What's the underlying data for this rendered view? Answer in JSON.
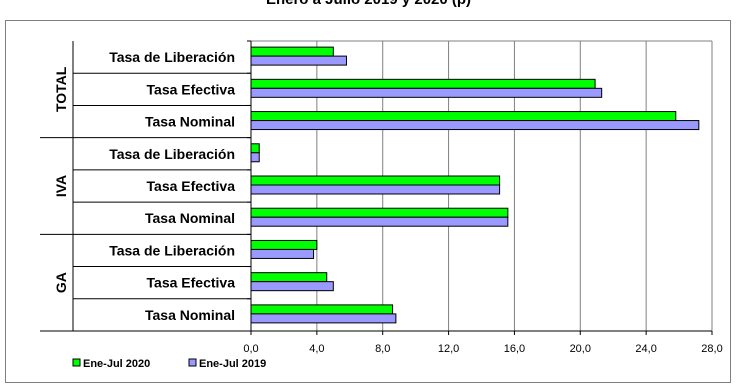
{
  "chart_data": {
    "type": "bar",
    "orientation": "horizontal",
    "title": "Enero a Julio 2019 y 2020 (p)",
    "groups": [
      "TOTAL",
      "IVA",
      "GA"
    ],
    "categories": [
      {
        "group": "TOTAL",
        "label": "Tasa de Liberación"
      },
      {
        "group": "TOTAL",
        "label": "Tasa Efectiva"
      },
      {
        "group": "TOTAL",
        "label": "Tasa Nominal"
      },
      {
        "group": "IVA",
        "label": "Tasa de Liberación"
      },
      {
        "group": "IVA",
        "label": "Tasa Efectiva"
      },
      {
        "group": "IVA",
        "label": "Tasa Nominal"
      },
      {
        "group": "GA",
        "label": "Tasa de Liberación"
      },
      {
        "group": "GA",
        "label": "Tasa Efectiva"
      },
      {
        "group": "GA",
        "label": "Tasa Nominal"
      }
    ],
    "series": [
      {
        "name": "Ene-Jul 2020",
        "color": "#00ff00",
        "values": [
          5.0,
          20.9,
          25.8,
          0.5,
          15.1,
          15.6,
          4.0,
          4.6,
          8.6
        ]
      },
      {
        "name": "Ene-Jul 2019",
        "color": "#9999ff",
        "values": [
          5.8,
          21.3,
          27.2,
          0.5,
          15.1,
          15.6,
          3.8,
          5.0,
          8.8
        ]
      }
    ],
    "xlim": [
      0,
      28
    ],
    "xticks": [
      "0,0",
      "4,0",
      "8,0",
      "12,0",
      "16,0",
      "20,0",
      "24,0",
      "28,0"
    ],
    "grid": true,
    "legend_position": "bottom-left"
  }
}
